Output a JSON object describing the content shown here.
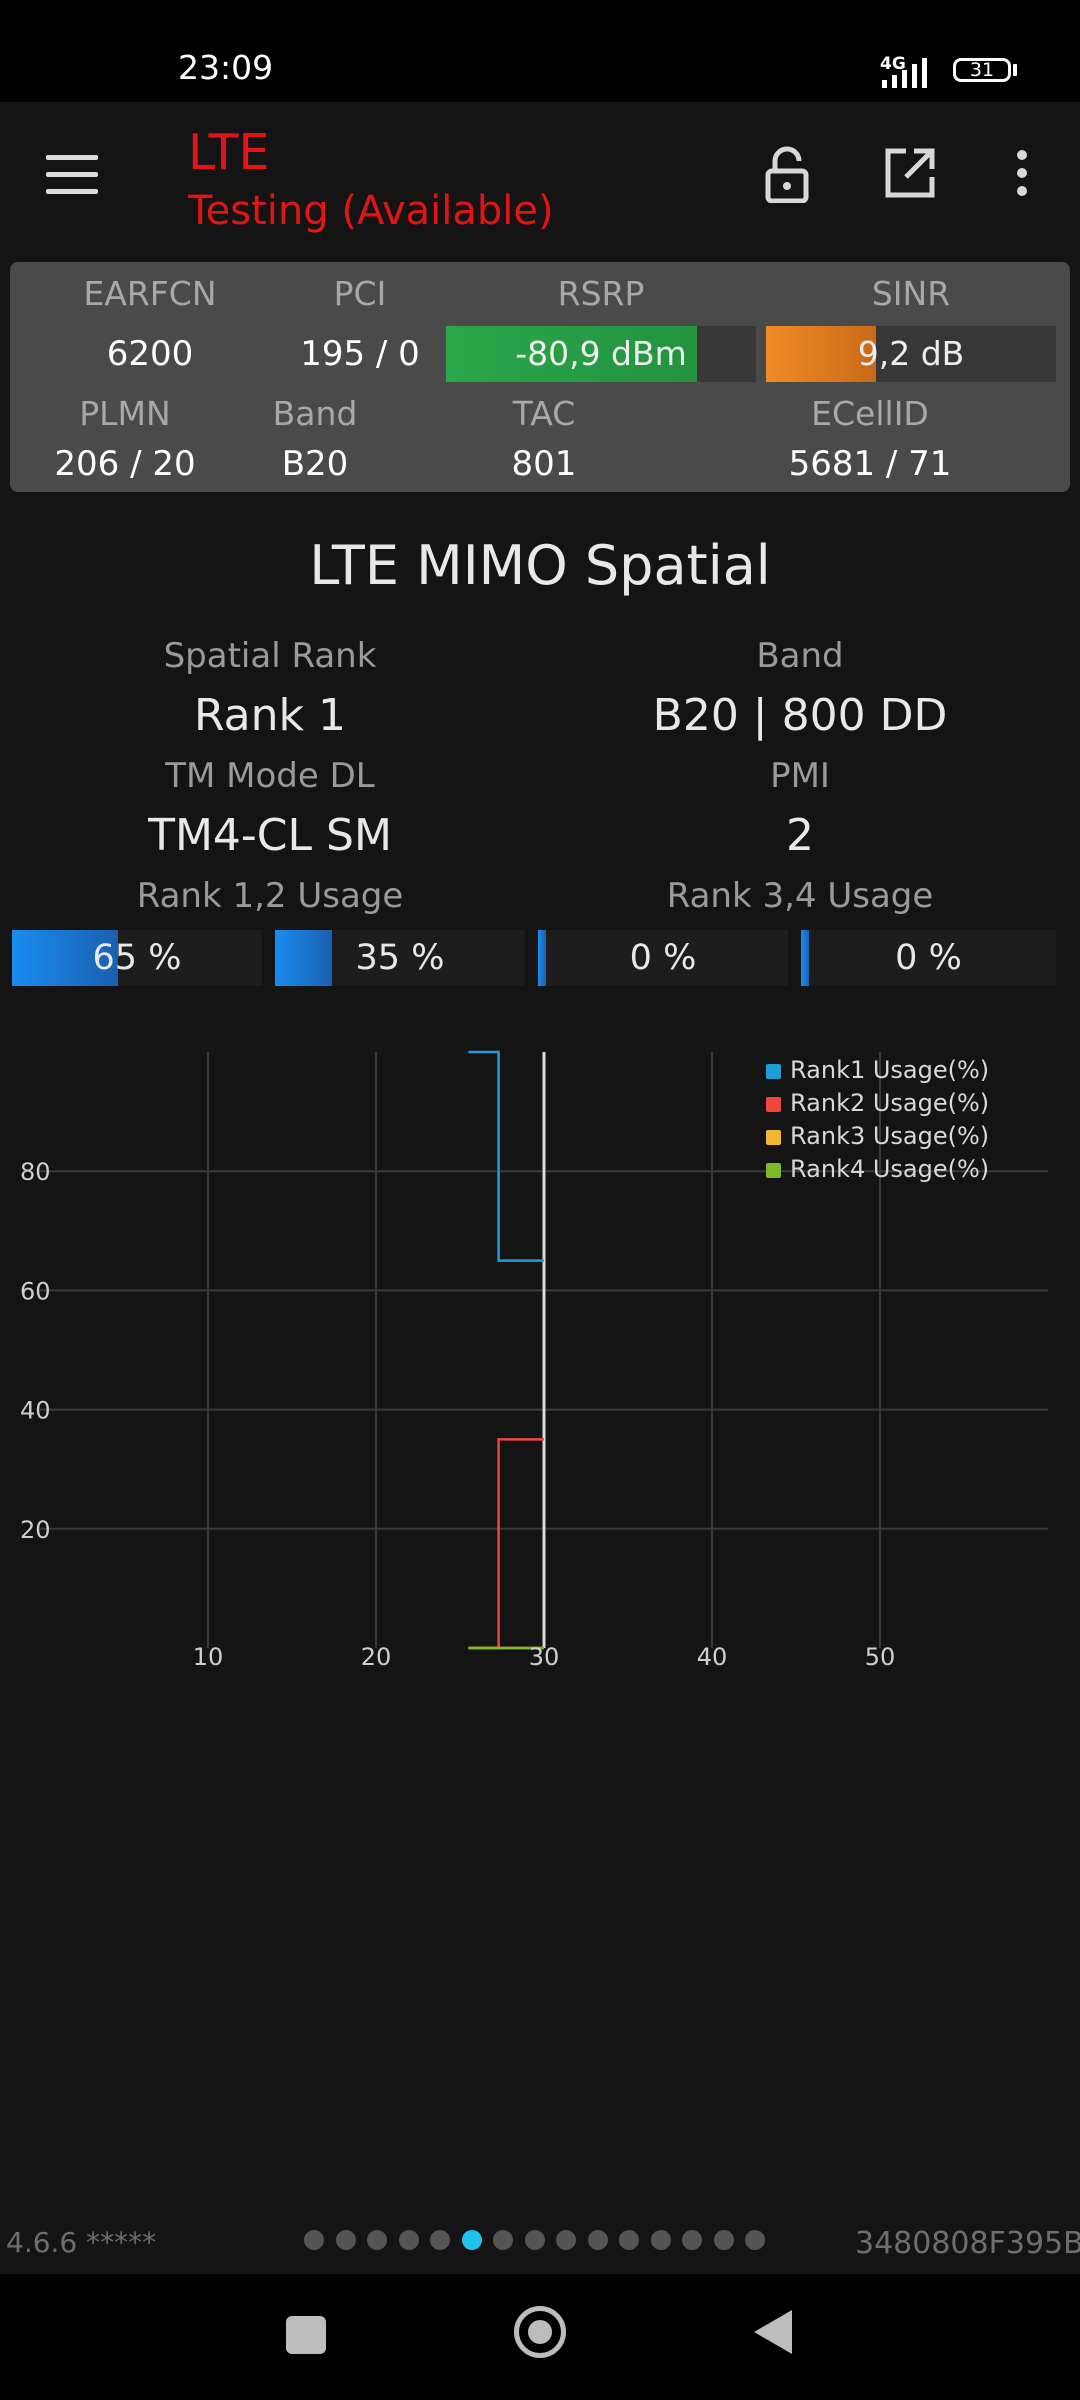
{
  "status_bar": {
    "time": "23:09",
    "network": "4G",
    "battery": "31"
  },
  "header": {
    "title": "LTE",
    "subtitle": "Testing (Available)"
  },
  "info": {
    "earfcn_label": "EARFCN",
    "earfcn": "6200",
    "pci_label": "PCI",
    "pci": "195 / 0",
    "rsrp_label": "RSRP",
    "rsrp": "-80,9 dBm",
    "rsrp_level": 0.81,
    "sinr_label": "SINR",
    "sinr": "9,2 dB",
    "sinr_level": 0.38,
    "plmn_label": "PLMN",
    "plmn": "206 / 20",
    "band_label": "Band",
    "band": "B20",
    "tac_label": "TAC",
    "tac": "801",
    "ecellid_label": "ECellID",
    "ecellid": "5681 / 71"
  },
  "section": {
    "title": "LTE MIMO Spatial",
    "spatial_rank_label": "Spatial Rank",
    "spatial_rank": "Rank 1",
    "band_label": "Band",
    "band": "B20 | 800 DD",
    "tm_mode_label": "TM Mode DL",
    "tm_mode": "TM4-CL SM",
    "pmi_label": "PMI",
    "pmi": "2",
    "rank12_label": "Rank 1,2 Usage",
    "rank34_label": "Rank 3,4 Usage"
  },
  "usage_bars": [
    {
      "text": "65 %",
      "value": 65
    },
    {
      "text": "35 %",
      "value": 35
    },
    {
      "text": "0 %",
      "value": 0
    },
    {
      "text": "0 %",
      "value": 0
    }
  ],
  "chart_data": {
    "type": "line",
    "xlim": [
      0,
      60
    ],
    "ylim": [
      0,
      100
    ],
    "x_ticks": [
      10,
      20,
      30,
      40,
      50
    ],
    "y_ticks": [
      20,
      40,
      60,
      80
    ],
    "grid": true,
    "legend_position": "top-right",
    "cursor_x": 30,
    "series": [
      {
        "name": "Rank1 Usage(%)",
        "color": "#1e9fd8",
        "points": [
          [
            25.5,
            100
          ],
          [
            27.3,
            100
          ],
          [
            27.3,
            65
          ],
          [
            30,
            65
          ]
        ]
      },
      {
        "name": "Rank2 Usage(%)",
        "color": "#f0463c",
        "points": [
          [
            25.5,
            0
          ],
          [
            27.3,
            0
          ],
          [
            27.3,
            35
          ],
          [
            30,
            35
          ]
        ]
      },
      {
        "name": "Rank3 Usage(%)",
        "color": "#f2b632",
        "points": [
          [
            25.5,
            0
          ],
          [
            30,
            0
          ]
        ]
      },
      {
        "name": "Rank4 Usage(%)",
        "color": "#7cb82a",
        "points": [
          [
            25.5,
            0
          ],
          [
            30,
            0
          ]
        ]
      }
    ]
  },
  "footer": {
    "version": "4.6.6 *****",
    "device_id": "3480808F395B",
    "page_count": 15,
    "active_page": 5
  },
  "colors": {
    "accent_red": "#e31414",
    "rsrp_green": "#2aa84a",
    "sinr_orange": "#f08a24",
    "usage_blue": "#1a8cf0",
    "page_dot_active": "#1ec3f0"
  }
}
